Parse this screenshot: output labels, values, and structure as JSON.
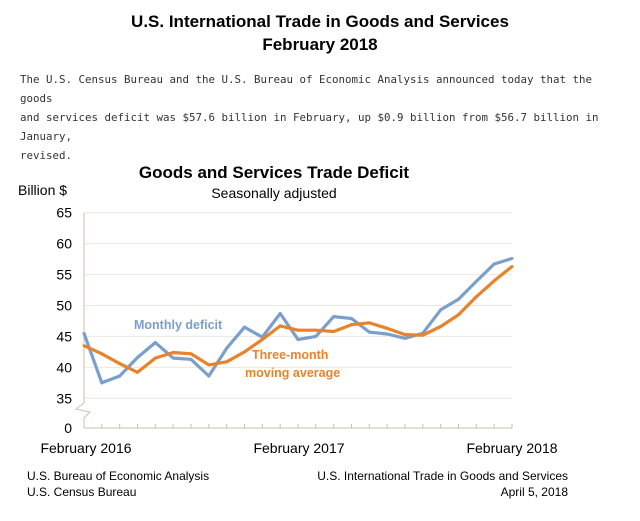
{
  "page": {
    "title_line1": "U.S. International Trade in Goods and Services",
    "title_line2": "February 2018",
    "intro": "The U.S. Census Bureau and the U.S. Bureau of Economic Analysis announced today that the goods\nand services deficit was $57.6 billion in February, up $0.9 billion from $56.7 billion in January,\nrevised."
  },
  "footer": {
    "left_line1": "U.S. Bureau of Economic Analysis",
    "left_line2": "U.S. Census Bureau",
    "right_line1": "U.S. International Trade in Goods and Services",
    "right_line2": "April 5, 2018"
  },
  "chart_data": {
    "type": "line",
    "title": "Goods and Services Trade Deficit",
    "subtitle": "Seasonally adjusted",
    "ylabel": "Billion $",
    "ylim": [
      35,
      65
    ],
    "y_axis_break": true,
    "yticks": [
      0,
      35,
      40,
      45,
      50,
      55,
      60,
      65
    ],
    "xtick_labels": [
      "February 2016",
      "February 2017",
      "February 2018"
    ],
    "x": [
      "2016-02",
      "2016-03",
      "2016-04",
      "2016-05",
      "2016-06",
      "2016-07",
      "2016-08",
      "2016-09",
      "2016-10",
      "2016-11",
      "2016-12",
      "2017-01",
      "2017-02",
      "2017-03",
      "2017-04",
      "2017-05",
      "2017-06",
      "2017-07",
      "2017-08",
      "2017-09",
      "2017-10",
      "2017-11",
      "2017-12",
      "2018-01",
      "2018-02"
    ],
    "grid": true,
    "series": [
      {
        "name": "Monthly deficit",
        "color": "#7b9fcc",
        "values": [
          45.5,
          37.5,
          38.6,
          41.6,
          44.0,
          41.5,
          41.3,
          38.6,
          43.1,
          46.5,
          44.9,
          48.7,
          44.5,
          45.0,
          48.2,
          47.9,
          45.7,
          45.4,
          44.7,
          45.5,
          49.3,
          51.0,
          53.9,
          56.7,
          57.6
        ]
      },
      {
        "name": "Three-month moving average",
        "label_line1": "Three-month",
        "label_line2": "moving average",
        "color": "#e8822b",
        "values": [
          43.5,
          42.2,
          40.6,
          39.2,
          41.5,
          42.4,
          42.2,
          40.4,
          40.9,
          42.5,
          44.5,
          46.7,
          46.0,
          46.0,
          45.8,
          46.9,
          47.2,
          46.3,
          45.3,
          45.2,
          46.6,
          48.5,
          51.4,
          54.0,
          56.3
        ]
      }
    ]
  }
}
